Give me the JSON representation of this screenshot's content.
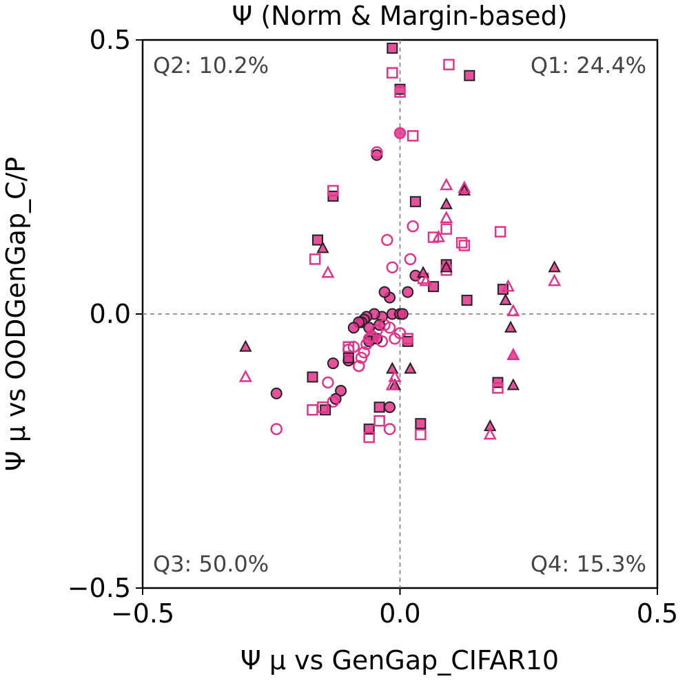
{
  "chart_data": {
    "type": "scatter",
    "title": "Ψ (Norm & Margin-based)",
    "xlabel": "Ψ μ vs GenGap_CIFAR10",
    "ylabel": "Ψ μ vs OODGenGap_C/P",
    "xlim": [
      -0.5,
      0.5
    ],
    "ylim": [
      -0.5,
      0.5
    ],
    "xticks": [
      "−0.5",
      "0.0",
      "0.5"
    ],
    "yticks": [
      "0.5",
      "0.0",
      "−0.5"
    ],
    "xtick_values": [
      -0.5,
      0.0,
      0.5
    ],
    "ytick_values": [
      0.5,
      0.0,
      -0.5
    ],
    "grid": false,
    "reference_lines": {
      "x": 0.0,
      "y": 0.0
    },
    "quadrant_labels": {
      "q1": "Q1: 24.4%",
      "q2": "Q2: 10.2%",
      "q3": "Q3: 50.0%",
      "q4": "Q4: 15.3%"
    },
    "colors": {
      "magenta": "#e0338a",
      "edge_dark": "#222222",
      "reference": "#777777"
    },
    "series": [
      {
        "name": "filled-circles",
        "marker": "circle",
        "style": "filled",
        "points": [
          [
            -0.045,
            0.29
          ],
          [
            0.0,
            0.33
          ],
          [
            -0.02,
            0.03
          ],
          [
            -0.03,
            0.04
          ],
          [
            -0.015,
            0.0
          ],
          [
            -0.035,
            -0.005
          ],
          [
            -0.05,
            0.0
          ],
          [
            -0.065,
            -0.005
          ],
          [
            -0.07,
            -0.01
          ],
          [
            -0.075,
            -0.015
          ],
          [
            -0.08,
            -0.015
          ],
          [
            -0.09,
            -0.025
          ],
          [
            -0.06,
            -0.025
          ],
          [
            -0.04,
            -0.02
          ],
          [
            0.0,
            0.0
          ],
          [
            0.005,
            0.0
          ],
          [
            0.03,
            0.07
          ],
          [
            0.015,
            0.04
          ],
          [
            -0.1,
            -0.085
          ],
          [
            -0.13,
            -0.09
          ],
          [
            -0.24,
            -0.145
          ],
          [
            -0.115,
            -0.14
          ],
          [
            -0.125,
            -0.155
          ],
          [
            -0.02,
            -0.17
          ],
          [
            -0.055,
            -0.04
          ],
          [
            -0.06,
            -0.05
          ],
          [
            -0.045,
            -0.045
          ]
        ]
      },
      {
        "name": "open-circles",
        "marker": "circle",
        "style": "open",
        "points": [
          [
            0.0,
            0.33
          ],
          [
            -0.045,
            0.295
          ],
          [
            0.025,
            0.16
          ],
          [
            -0.025,
            0.135
          ],
          [
            0.02,
            0.1
          ],
          [
            -0.015,
            0.085
          ],
          [
            -0.055,
            -0.04
          ],
          [
            -0.06,
            -0.045
          ],
          [
            -0.065,
            -0.055
          ],
          [
            -0.07,
            -0.07
          ],
          [
            -0.075,
            -0.08
          ],
          [
            -0.08,
            -0.095
          ],
          [
            -0.09,
            -0.06
          ],
          [
            -0.1,
            -0.065
          ],
          [
            -0.045,
            -0.03
          ],
          [
            -0.03,
            -0.02
          ],
          [
            -0.02,
            -0.025
          ],
          [
            0.0,
            -0.035
          ],
          [
            -0.14,
            -0.125
          ],
          [
            -0.13,
            -0.16
          ],
          [
            -0.08,
            -0.095
          ],
          [
            -0.24,
            -0.21
          ],
          [
            -0.035,
            -0.05
          ],
          [
            -0.01,
            -0.045
          ],
          [
            -0.02,
            -0.21
          ]
        ]
      },
      {
        "name": "filled-squares",
        "marker": "square",
        "style": "filled",
        "points": [
          [
            -0.015,
            0.485
          ],
          [
            0.135,
            0.435
          ],
          [
            0.0,
            0.41
          ],
          [
            -0.13,
            0.215
          ],
          [
            0.03,
            0.205
          ],
          [
            -0.16,
            0.135
          ],
          [
            0.09,
            0.09
          ],
          [
            0.065,
            0.05
          ],
          [
            0.2,
            0.045
          ],
          [
            0.13,
            0.025
          ],
          [
            0.015,
            -0.05
          ],
          [
            -0.1,
            -0.08
          ],
          [
            -0.17,
            -0.115
          ],
          [
            -0.145,
            -0.175
          ],
          [
            -0.04,
            -0.17
          ],
          [
            -0.06,
            -0.21
          ],
          [
            0.04,
            -0.2
          ],
          [
            0.19,
            -0.125
          ]
        ]
      },
      {
        "name": "open-squares",
        "marker": "square",
        "style": "open",
        "points": [
          [
            0.095,
            0.455
          ],
          [
            -0.015,
            0.44
          ],
          [
            0.0,
            0.405
          ],
          [
            0.025,
            0.325
          ],
          [
            -0.13,
            0.225
          ],
          [
            0.195,
            0.15
          ],
          [
            0.09,
            0.155
          ],
          [
            0.065,
            0.14
          ],
          [
            0.12,
            0.13
          ],
          [
            0.125,
            0.125
          ],
          [
            0.09,
            0.08
          ],
          [
            -0.165,
            0.1
          ],
          [
            0.045,
            0.065
          ],
          [
            0.015,
            -0.045
          ],
          [
            -0.1,
            -0.06
          ],
          [
            -0.17,
            -0.175
          ],
          [
            -0.15,
            -0.17
          ],
          [
            -0.04,
            -0.195
          ],
          [
            -0.06,
            -0.225
          ],
          [
            0.04,
            -0.22
          ],
          [
            0.19,
            -0.135
          ]
        ]
      },
      {
        "name": "filled-triangles",
        "marker": "triangle",
        "style": "filled",
        "points": [
          [
            0.125,
            0.225
          ],
          [
            0.09,
            0.2
          ],
          [
            -0.15,
            0.12
          ],
          [
            0.045,
            0.075
          ],
          [
            0.09,
            0.085
          ],
          [
            0.3,
            0.085
          ],
          [
            0.205,
            0.025
          ],
          [
            0.215,
            -0.025
          ],
          [
            0.22,
            -0.075
          ],
          [
            0.22,
            -0.13
          ],
          [
            -0.3,
            -0.06
          ],
          [
            -0.01,
            -0.13
          ],
          [
            -0.015,
            -0.1
          ],
          [
            0.02,
            -0.1
          ],
          [
            0.175,
            -0.205
          ]
        ]
      },
      {
        "name": "open-triangles",
        "marker": "triangle",
        "style": "open",
        "points": [
          [
            0.09,
            0.235
          ],
          [
            0.125,
            0.23
          ],
          [
            0.09,
            0.175
          ],
          [
            0.075,
            0.14
          ],
          [
            -0.14,
            0.075
          ],
          [
            0.05,
            0.06
          ],
          [
            0.3,
            0.06
          ],
          [
            0.21,
            0.05
          ],
          [
            0.22,
            0.005
          ],
          [
            -0.3,
            -0.115
          ],
          [
            -0.01,
            -0.115
          ],
          [
            -0.015,
            -0.13
          ],
          [
            0.22,
            -0.075
          ],
          [
            0.175,
            -0.22
          ]
        ]
      }
    ]
  }
}
